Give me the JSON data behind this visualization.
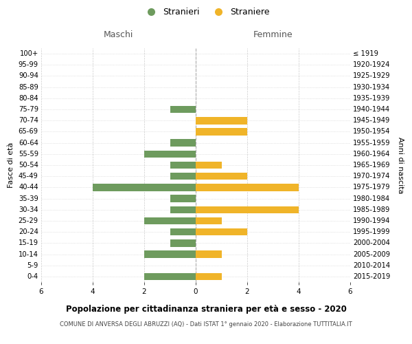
{
  "age_groups": [
    "100+",
    "95-99",
    "90-94",
    "85-89",
    "80-84",
    "75-79",
    "70-74",
    "65-69",
    "60-64",
    "55-59",
    "50-54",
    "45-49",
    "40-44",
    "35-39",
    "30-34",
    "25-29",
    "20-24",
    "15-19",
    "10-14",
    "5-9",
    "0-4"
  ],
  "birth_years": [
    "≤ 1919",
    "1920-1924",
    "1925-1929",
    "1930-1934",
    "1935-1939",
    "1940-1944",
    "1945-1949",
    "1950-1954",
    "1955-1959",
    "1960-1964",
    "1965-1969",
    "1970-1974",
    "1975-1979",
    "1980-1984",
    "1985-1989",
    "1990-1994",
    "1995-1999",
    "2000-2004",
    "2005-2009",
    "2010-2014",
    "2015-2019"
  ],
  "males": [
    0,
    0,
    0,
    0,
    0,
    1,
    0,
    0,
    1,
    2,
    1,
    1,
    4,
    1,
    1,
    2,
    1,
    1,
    2,
    0,
    2
  ],
  "females": [
    0,
    0,
    0,
    0,
    0,
    0,
    2,
    2,
    0,
    0,
    1,
    2,
    4,
    0,
    4,
    1,
    2,
    0,
    1,
    0,
    1
  ],
  "male_color": "#6e9b5e",
  "female_color": "#f0b429",
  "background_color": "#ffffff",
  "grid_color": "#cccccc",
  "title": "Popolazione per cittadinanza straniera per età e sesso - 2020",
  "subtitle": "COMUNE DI ANVERSA DEGLI ABRUZZI (AQ) - Dati ISTAT 1° gennaio 2020 - Elaborazione TUTTITALIA.IT",
  "xlabel_left": "Maschi",
  "xlabel_right": "Femmine",
  "ylabel_left": "Fasce di età",
  "ylabel_right": "Anni di nascita",
  "legend_male": "Stranieri",
  "legend_female": "Straniere",
  "xlim": 6
}
